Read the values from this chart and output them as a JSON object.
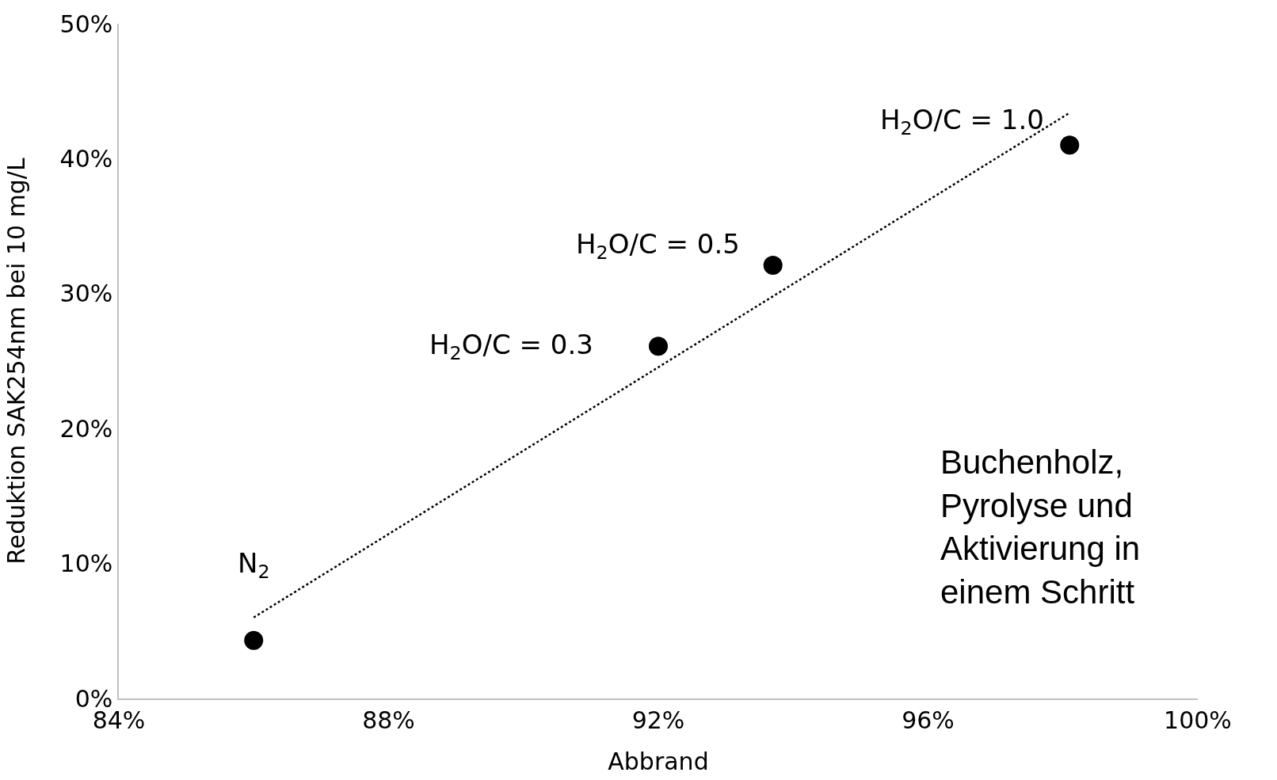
{
  "chart_data": {
    "type": "scatter",
    "xlabel": "Abbrand",
    "ylabel": "Reduktion SAK254nm bei 10 mg/L",
    "x": [
      86.0,
      92.0,
      93.7,
      98.1
    ],
    "series": [
      {
        "color": "#000000",
        "marker": "circle",
        "values": [
          4.3,
          26.1,
          32.1,
          41.0
        ]
      },
      {
        "type": "line",
        "color": "#000000",
        "line_style": "dotted",
        "marker": "none",
        "x": [
          86.0,
          98.1
        ],
        "values": [
          6.0,
          43.4
        ]
      }
    ],
    "xlim": [
      84,
      100
    ],
    "xticks": [
      {
        "value": 84,
        "label": "84%"
      },
      {
        "value": 88,
        "label": "88%"
      },
      {
        "value": 92,
        "label": "92%"
      },
      {
        "value": 96,
        "label": "96%"
      },
      {
        "value": 100,
        "label": "100%"
      }
    ],
    "ylim": [
      0,
      50
    ],
    "yticks": [
      {
        "value": 0,
        "label": "0%"
      },
      {
        "value": 10,
        "label": "10%"
      },
      {
        "value": 20,
        "label": "20%"
      },
      {
        "value": 30,
        "label": "30%"
      },
      {
        "value": 40,
        "label": "40%"
      },
      {
        "value": 50,
        "label": "50%"
      }
    ],
    "annotations": [
      {
        "text": "N$_{2}$",
        "x": 86.0,
        "y": 4.3
      },
      {
        "text": "H$_{2}$O/C = 0.3",
        "x": 92.0,
        "y": 26.1
      },
      {
        "text": "H$_{2}$O/C = 0.5",
        "x": 93.7,
        "y": 32.1
      },
      {
        "text": "H$_{2}$O/C = 1.0",
        "x": 98.1,
        "y": 41.0
      },
      "Buchenholz,\nPyrolyse und\nAktivierung in\neinem Schritt"
    ]
  }
}
